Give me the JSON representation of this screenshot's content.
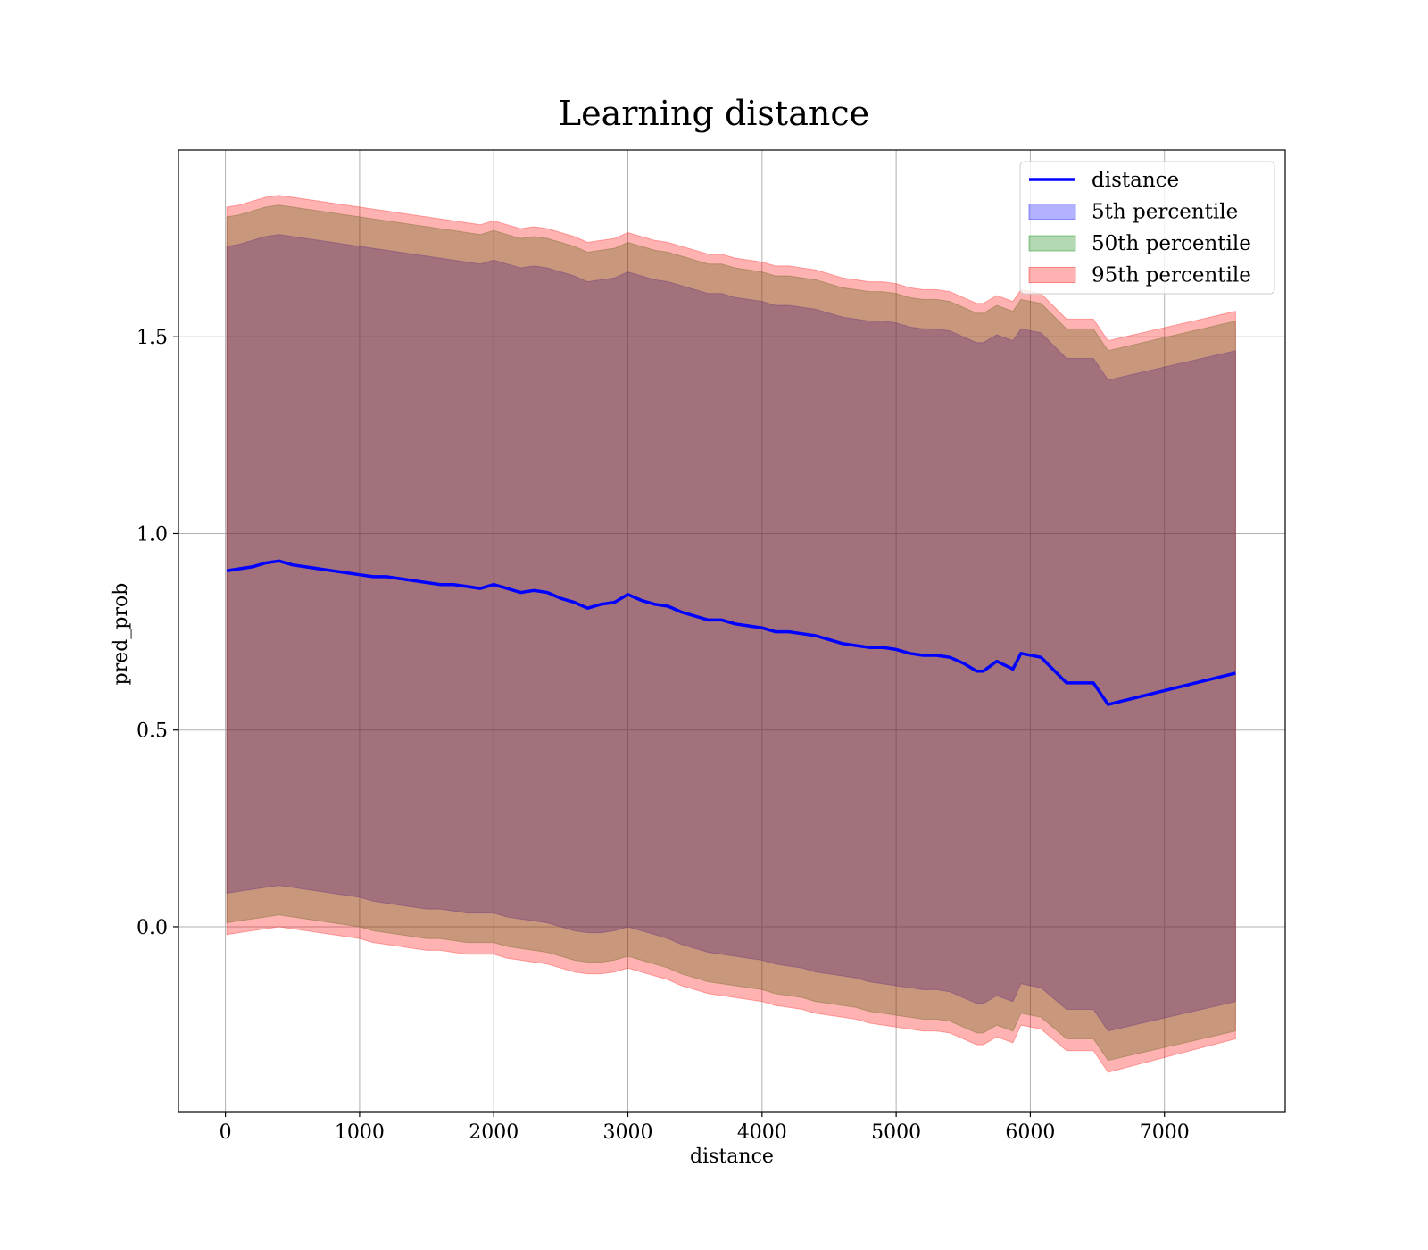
{
  "chart_data": {
    "type": "line",
    "title": "Learning distance",
    "xlabel": "distance",
    "ylabel": "pred_prob",
    "xlim": [
      -350,
      7900
    ],
    "ylim": [
      -0.47,
      1.975
    ],
    "xticks": [
      0,
      1000,
      2000,
      3000,
      4000,
      5000,
      6000,
      7000
    ],
    "yticks": [
      0.0,
      0.5,
      1.0,
      1.5
    ],
    "xtick_labels": [
      "0",
      "1000",
      "2000",
      "3000",
      "4000",
      "5000",
      "6000",
      "7000"
    ],
    "ytick_labels": [
      "0.0",
      "0.5",
      "1.0",
      "1.5"
    ],
    "grid": true,
    "legend_position": "top-right",
    "x": [
      10,
      100,
      200,
      300,
      400,
      500,
      600,
      700,
      800,
      900,
      1000,
      1100,
      1200,
      1300,
      1400,
      1500,
      1600,
      1700,
      1800,
      1900,
      2000,
      2100,
      2200,
      2300,
      2400,
      2500,
      2600,
      2700,
      2800,
      2900,
      3000,
      3100,
      3200,
      3300,
      3400,
      3500,
      3600,
      3700,
      3800,
      3900,
      4000,
      4100,
      4200,
      4300,
      4400,
      4500,
      4600,
      4700,
      4800,
      4900,
      5000,
      5100,
      5200,
      5300,
      5400,
      5500,
      5600,
      5650,
      5750,
      5870,
      5930,
      6080,
      6270,
      6470,
      6580,
      7530
    ],
    "series": [
      {
        "name": "distance",
        "kind": "line",
        "color": "#0000ff",
        "values": [
          0.905,
          0.91,
          0.915,
          0.925,
          0.93,
          0.92,
          0.915,
          0.91,
          0.905,
          0.9,
          0.895,
          0.89,
          0.89,
          0.885,
          0.88,
          0.875,
          0.87,
          0.87,
          0.865,
          0.86,
          0.87,
          0.86,
          0.85,
          0.855,
          0.85,
          0.835,
          0.825,
          0.81,
          0.82,
          0.825,
          0.845,
          0.83,
          0.82,
          0.815,
          0.8,
          0.79,
          0.78,
          0.78,
          0.77,
          0.765,
          0.76,
          0.75,
          0.75,
          0.745,
          0.74,
          0.73,
          0.72,
          0.715,
          0.71,
          0.71,
          0.705,
          0.695,
          0.69,
          0.69,
          0.685,
          0.67,
          0.65,
          0.65,
          0.675,
          0.655,
          0.695,
          0.685,
          0.62,
          0.62,
          0.565,
          0.645
        ]
      },
      {
        "name": "5th percentile",
        "kind": "band",
        "color": "#0000ff",
        "opacity": 0.3,
        "lower": [
          0.085,
          0.09,
          0.095,
          0.1,
          0.105,
          0.1,
          0.095,
          0.09,
          0.085,
          0.08,
          0.075,
          0.065,
          0.06,
          0.055,
          0.05,
          0.045,
          0.045,
          0.04,
          0.035,
          0.035,
          0.035,
          0.025,
          0.02,
          0.015,
          0.01,
          0.0,
          -0.01,
          -0.015,
          -0.015,
          -0.01,
          0.0,
          -0.01,
          -0.02,
          -0.03,
          -0.045,
          -0.055,
          -0.065,
          -0.07,
          -0.075,
          -0.08,
          -0.085,
          -0.095,
          -0.1,
          -0.105,
          -0.115,
          -0.12,
          -0.125,
          -0.13,
          -0.14,
          -0.145,
          -0.15,
          -0.155,
          -0.16,
          -0.16,
          -0.165,
          -0.18,
          -0.195,
          -0.195,
          -0.175,
          -0.19,
          -0.145,
          -0.155,
          -0.21,
          -0.21,
          -0.265,
          -0.19
        ],
        "upper": [
          1.73,
          1.735,
          1.745,
          1.755,
          1.76,
          1.755,
          1.75,
          1.745,
          1.74,
          1.735,
          1.73,
          1.725,
          1.72,
          1.715,
          1.71,
          1.705,
          1.7,
          1.695,
          1.69,
          1.685,
          1.695,
          1.685,
          1.675,
          1.68,
          1.675,
          1.665,
          1.655,
          1.64,
          1.645,
          1.65,
          1.665,
          1.655,
          1.645,
          1.64,
          1.63,
          1.62,
          1.61,
          1.61,
          1.6,
          1.595,
          1.59,
          1.58,
          1.58,
          1.575,
          1.57,
          1.56,
          1.55,
          1.545,
          1.54,
          1.54,
          1.535,
          1.525,
          1.52,
          1.52,
          1.515,
          1.5,
          1.485,
          1.485,
          1.505,
          1.49,
          1.52,
          1.51,
          1.445,
          1.445,
          1.39,
          1.465
        ]
      },
      {
        "name": "50th percentile",
        "kind": "band",
        "color": "#008000",
        "opacity": 0.3,
        "lower": [
          0.01,
          0.015,
          0.02,
          0.025,
          0.03,
          0.025,
          0.02,
          0.015,
          0.01,
          0.005,
          0.0,
          -0.01,
          -0.015,
          -0.02,
          -0.025,
          -0.03,
          -0.03,
          -0.035,
          -0.04,
          -0.04,
          -0.04,
          -0.05,
          -0.055,
          -0.06,
          -0.065,
          -0.075,
          -0.085,
          -0.09,
          -0.09,
          -0.085,
          -0.075,
          -0.085,
          -0.095,
          -0.105,
          -0.12,
          -0.13,
          -0.14,
          -0.145,
          -0.15,
          -0.155,
          -0.16,
          -0.17,
          -0.175,
          -0.18,
          -0.19,
          -0.195,
          -0.2,
          -0.205,
          -0.215,
          -0.22,
          -0.225,
          -0.23,
          -0.235,
          -0.235,
          -0.24,
          -0.255,
          -0.27,
          -0.27,
          -0.25,
          -0.265,
          -0.22,
          -0.23,
          -0.285,
          -0.285,
          -0.34,
          -0.265
        ],
        "upper": [
          1.805,
          1.81,
          1.82,
          1.83,
          1.835,
          1.83,
          1.825,
          1.82,
          1.815,
          1.81,
          1.805,
          1.8,
          1.795,
          1.79,
          1.785,
          1.78,
          1.775,
          1.77,
          1.765,
          1.76,
          1.77,
          1.76,
          1.75,
          1.755,
          1.75,
          1.74,
          1.73,
          1.715,
          1.72,
          1.725,
          1.74,
          1.73,
          1.72,
          1.715,
          1.705,
          1.695,
          1.685,
          1.685,
          1.675,
          1.67,
          1.665,
          1.655,
          1.655,
          1.65,
          1.645,
          1.635,
          1.625,
          1.62,
          1.615,
          1.615,
          1.61,
          1.6,
          1.595,
          1.595,
          1.59,
          1.575,
          1.56,
          1.56,
          1.58,
          1.565,
          1.595,
          1.585,
          1.52,
          1.52,
          1.465,
          1.54
        ]
      },
      {
        "name": "95th percentile",
        "kind": "band",
        "color": "#ff0000",
        "opacity": 0.3,
        "lower": [
          -0.02,
          -0.015,
          -0.01,
          -0.005,
          0.0,
          -0.005,
          -0.01,
          -0.015,
          -0.02,
          -0.025,
          -0.03,
          -0.04,
          -0.045,
          -0.05,
          -0.055,
          -0.06,
          -0.06,
          -0.065,
          -0.07,
          -0.07,
          -0.07,
          -0.08,
          -0.085,
          -0.09,
          -0.095,
          -0.105,
          -0.115,
          -0.12,
          -0.12,
          -0.115,
          -0.105,
          -0.115,
          -0.125,
          -0.135,
          -0.15,
          -0.16,
          -0.17,
          -0.175,
          -0.18,
          -0.185,
          -0.19,
          -0.2,
          -0.205,
          -0.21,
          -0.22,
          -0.225,
          -0.23,
          -0.235,
          -0.245,
          -0.25,
          -0.255,
          -0.26,
          -0.265,
          -0.265,
          -0.27,
          -0.285,
          -0.3,
          -0.3,
          -0.28,
          -0.295,
          -0.25,
          -0.26,
          -0.315,
          -0.315,
          -0.37,
          -0.285
        ],
        "upper": [
          1.83,
          1.835,
          1.845,
          1.855,
          1.86,
          1.855,
          1.85,
          1.845,
          1.84,
          1.835,
          1.83,
          1.825,
          1.82,
          1.815,
          1.81,
          1.805,
          1.8,
          1.795,
          1.79,
          1.785,
          1.795,
          1.785,
          1.775,
          1.78,
          1.775,
          1.765,
          1.755,
          1.74,
          1.745,
          1.75,
          1.765,
          1.755,
          1.745,
          1.74,
          1.73,
          1.72,
          1.71,
          1.71,
          1.7,
          1.695,
          1.69,
          1.68,
          1.68,
          1.675,
          1.67,
          1.66,
          1.65,
          1.645,
          1.64,
          1.64,
          1.635,
          1.625,
          1.62,
          1.62,
          1.615,
          1.6,
          1.585,
          1.585,
          1.605,
          1.59,
          1.62,
          1.61,
          1.545,
          1.545,
          1.49,
          1.565
        ]
      }
    ]
  }
}
